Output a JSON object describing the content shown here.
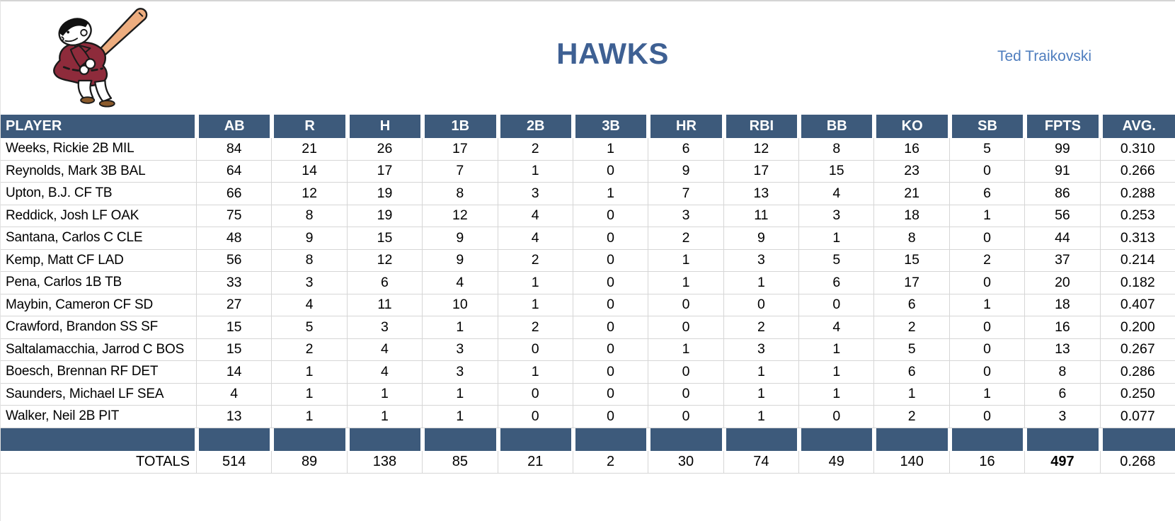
{
  "header": {
    "team_name": "HAWKS",
    "owner_name": "Ted Traikovski",
    "logo_icon": "swinging-friar-mascot-icon"
  },
  "table": {
    "columns": [
      "PLAYER",
      "AB",
      "R",
      "H",
      "1B",
      "2B",
      "3B",
      "HR",
      "RBI",
      "BB",
      "KO",
      "SB",
      "FPTS",
      "AVG."
    ],
    "rows": [
      {
        "player": "Weeks, Rickie 2B MIL",
        "stats": [
          "84",
          "21",
          "26",
          "17",
          "2",
          "1",
          "6",
          "12",
          "8",
          "16",
          "5",
          "99",
          "0.310"
        ]
      },
      {
        "player": "Reynolds, Mark 3B BAL",
        "stats": [
          "64",
          "14",
          "17",
          "7",
          "1",
          "0",
          "9",
          "17",
          "15",
          "23",
          "0",
          "91",
          "0.266"
        ]
      },
      {
        "player": "Upton, B.J. CF TB",
        "stats": [
          "66",
          "12",
          "19",
          "8",
          "3",
          "1",
          "7",
          "13",
          "4",
          "21",
          "6",
          "86",
          "0.288"
        ]
      },
      {
        "player": "Reddick, Josh LF OAK",
        "stats": [
          "75",
          "8",
          "19",
          "12",
          "4",
          "0",
          "3",
          "11",
          "3",
          "18",
          "1",
          "56",
          "0.253"
        ]
      },
      {
        "player": "Santana, Carlos C CLE",
        "stats": [
          "48",
          "9",
          "15",
          "9",
          "4",
          "0",
          "2",
          "9",
          "1",
          "8",
          "0",
          "44",
          "0.313"
        ]
      },
      {
        "player": "Kemp, Matt CF LAD",
        "stats": [
          "56",
          "8",
          "12",
          "9",
          "2",
          "0",
          "1",
          "3",
          "5",
          "15",
          "2",
          "37",
          "0.214"
        ]
      },
      {
        "player": "Pena, Carlos 1B TB",
        "stats": [
          "33",
          "3",
          "6",
          "4",
          "1",
          "0",
          "1",
          "1",
          "6",
          "17",
          "0",
          "20",
          "0.182"
        ]
      },
      {
        "player": "Maybin, Cameron CF SD",
        "stats": [
          "27",
          "4",
          "11",
          "10",
          "1",
          "0",
          "0",
          "0",
          "0",
          "6",
          "1",
          "18",
          "0.407"
        ]
      },
      {
        "player": "Crawford, Brandon SS SF",
        "stats": [
          "15",
          "5",
          "3",
          "1",
          "2",
          "0",
          "0",
          "2",
          "4",
          "2",
          "0",
          "16",
          "0.200"
        ]
      },
      {
        "player": "Saltalamacchia, Jarrod C BOS",
        "stats": [
          "15",
          "2",
          "4",
          "3",
          "0",
          "0",
          "1",
          "3",
          "1",
          "5",
          "0",
          "13",
          "0.267"
        ]
      },
      {
        "player": "Boesch, Brennan RF DET",
        "stats": [
          "14",
          "1",
          "4",
          "3",
          "1",
          "0",
          "0",
          "1",
          "1",
          "6",
          "0",
          "8",
          "0.286"
        ]
      },
      {
        "player": "Saunders, Michael LF SEA",
        "stats": [
          "4",
          "1",
          "1",
          "1",
          "0",
          "0",
          "0",
          "1",
          "1",
          "1",
          "1",
          "6",
          "0.250"
        ]
      },
      {
        "player": "Walker, Neil 2B PIT",
        "stats": [
          "13",
          "1",
          "1",
          "1",
          "0",
          "0",
          "0",
          "1",
          "0",
          "2",
          "0",
          "3",
          "0.077"
        ]
      }
    ],
    "totals": {
      "label": "TOTALS",
      "stats": [
        "514",
        "89",
        "138",
        "85",
        "21",
        "2",
        "30",
        "74",
        "49",
        "140",
        "16",
        "497",
        "0.268"
      ],
      "bold_column": "FPTS"
    }
  },
  "colors": {
    "header_bar": "#3d5a7b",
    "title_text": "#3e6093",
    "owner_text": "#4e7dbe",
    "gridline": "#d6d6d6",
    "robe": "#8e2b3b",
    "bat": "#edad7f",
    "sandal": "#8b5a2b"
  }
}
